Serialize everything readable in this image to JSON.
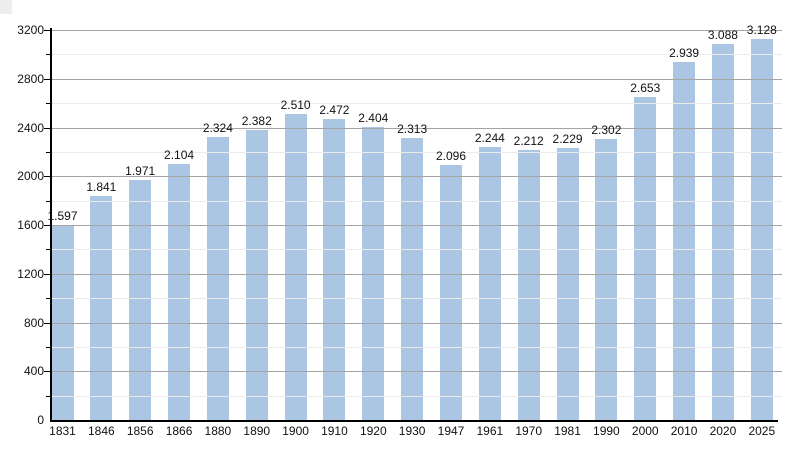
{
  "chart_data": {
    "type": "bar",
    "title": "",
    "xlabel": "",
    "ylabel": "",
    "categories": [
      "1831",
      "1846",
      "1856",
      "1866",
      "1880",
      "1890",
      "1900",
      "1910",
      "1920",
      "1930",
      "1947",
      "1961",
      "1970",
      "1981",
      "1990",
      "2000",
      "2010",
      "2020",
      "2025"
    ],
    "values": [
      1597,
      1841,
      1971,
      2104,
      2324,
      2382,
      2510,
      2472,
      2404,
      2313,
      2096,
      2244,
      2212,
      2229,
      2302,
      2653,
      2939,
      3088,
      3128
    ],
    "value_labels": [
      "1.597",
      "1.841",
      "1.971",
      "2.104",
      "2.324",
      "2.382",
      "2.510",
      "2.472",
      "2.404",
      "2.313",
      "2.096",
      "2.244",
      "2.212",
      "2.229",
      "2.302",
      "2.653",
      "2.939",
      "3.088",
      "3.128"
    ],
    "ylim": [
      0,
      3200
    ],
    "y_major_step": 400,
    "y_minor_step": 200,
    "y_major_tick_labels": [
      "0",
      "400",
      "800",
      "1200",
      "1600",
      "2000",
      "2400",
      "2800",
      "3200"
    ],
    "grid": "on",
    "legend_position": "none",
    "colors": {
      "bar": "#aac6e2",
      "grid_major": "#a4a4a4",
      "grid_minor": "#ebebeb",
      "axis": "#000000",
      "text": "#111111",
      "background": "#ffffff",
      "corner_artifact": "#ededed"
    }
  }
}
